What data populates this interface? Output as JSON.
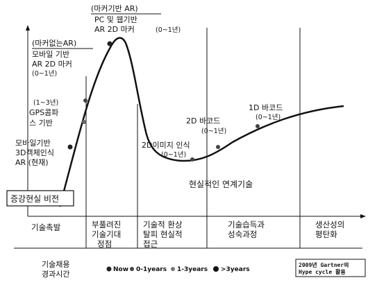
{
  "labels": {
    "marker_ar_title": "(마커기반 AR)",
    "marker_ar_line1": "PC 및 웹기반",
    "marker_ar_line2": "AR 2D 마커",
    "marker_ar_time": "(0~1년)",
    "markerless_title": "(마커없는AR)",
    "markerless_line1": "모바일 기반",
    "markerless_line2": "AR 2D 마커",
    "markerless_time": "(0~1년)",
    "gps_time": "(1~3년)",
    "gps_line1": "GPS콤파",
    "gps_line2": "스 기반",
    "mobile_line1": "모바일기반",
    "mobile_line2": "3D객체인식",
    "mobile_line3": "AR (현재)",
    "image_recog": "2D이미지 인식",
    "image_recog_time": "(0~1년)",
    "barcode2d": "2D 바코드",
    "barcode2d_time": "(0~1년)",
    "barcode1d": "1D 바코드",
    "barcode1d_time": "(0~1년)",
    "realistic": "현실적인 연계기술",
    "vision": "증강현실 비전"
  },
  "phases": [
    {
      "lines": [
        "기술촉발"
      ]
    },
    {
      "lines": [
        "부풀려진",
        "기술기대",
        "정점"
      ]
    },
    {
      "lines": [
        "기술적 환상",
        "탈피 현실적",
        "접근"
      ]
    },
    {
      "lines": [
        "기술습득과",
        "성숙과정"
      ]
    },
    {
      "lines": [
        "생산성의",
        "평탄화"
      ]
    }
  ],
  "legend": {
    "title_line1": "기술채용",
    "title_line2": "경과시간",
    "items": [
      "Now",
      "0-1years",
      "1-3years",
      ">3years"
    ]
  },
  "source": {
    "line1": "2009년 Gartner의",
    "line2": "Hype cycle 활용"
  }
}
